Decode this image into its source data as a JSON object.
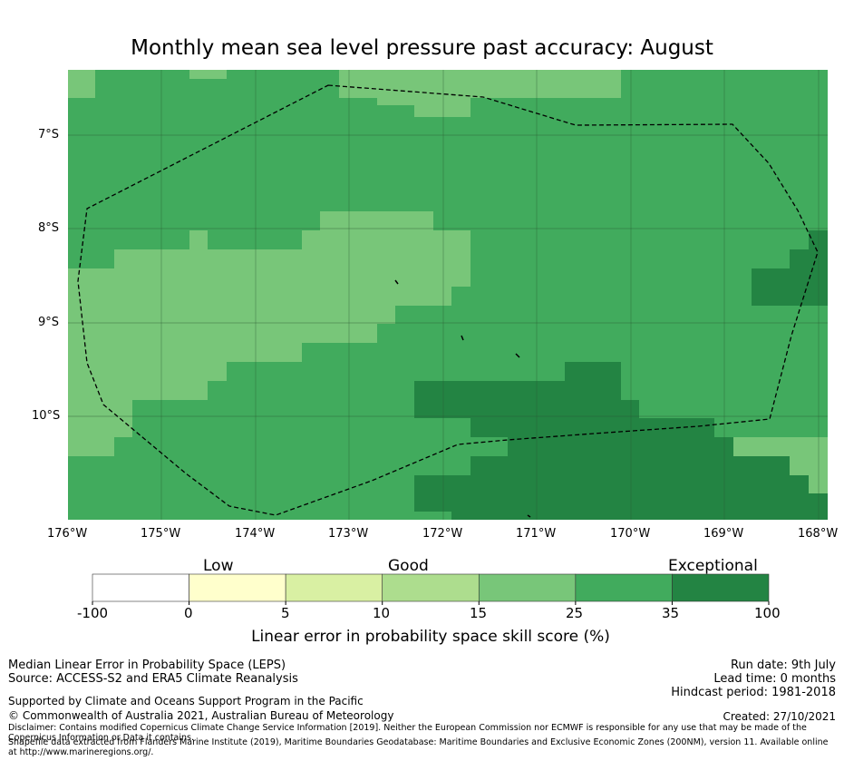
{
  "title": "Monthly mean sea level pressure past accuracy: August",
  "map": {
    "lat_labels": [
      "7°S",
      "8°S",
      "9°S",
      "10°S"
    ],
    "lon_labels": [
      "176°W",
      "175°W",
      "174°W",
      "173°W",
      "172°W",
      "171°W",
      "170°W",
      "169°W",
      "168°W"
    ]
  },
  "colorbar": {
    "categories": [
      "Low",
      "Good",
      "Exceptional"
    ],
    "ticks": [
      "-100",
      "0",
      "5",
      "10",
      "15",
      "25",
      "35",
      "100"
    ],
    "colors": [
      "#ffffff",
      "#ffffcc",
      "#d9f0a3",
      "#addd8e",
      "#78c679",
      "#41ab5d",
      "#238443"
    ],
    "label": "Linear error in probability space skill score (%)"
  },
  "footer": {
    "metric": "Median Linear Error in Probability Space (LEPS)",
    "source": "Source: ACCESS-S2 and ERA5 Climate Reanalysis",
    "run_date": "Run date: 9th July",
    "lead_time": "Lead time: 0 months",
    "hindcast": "Hindcast period: 1981-2018",
    "support": "Supported by Climate and Oceans Support Program in the Pacific",
    "copyright": "© Commonwealth of Australia 2021, Australian Bureau of Meteorology",
    "created": "Created: 27/10/2021",
    "disclaimer": "Disclaimer: Contains modified Copernicus Climate Change Service Information [2019]. Neither the European Commission nor ECMWF is responsible for any use that may be made of the Copernicus Information or Data it contains.",
    "shapefile": "Shapefile data extracted from Flanders Marine Institute (2019), Maritime Boundaries Geodatabase: Maritime Boundaries and Exclusive Economic Zones (200NM), version 11. Available online at http://www.marineregions.org/."
  }
}
